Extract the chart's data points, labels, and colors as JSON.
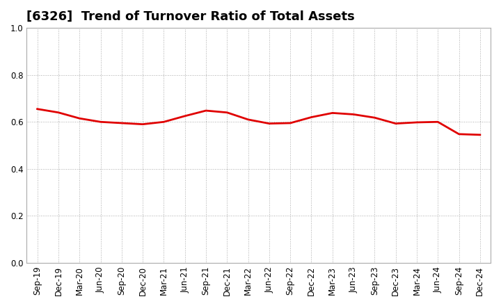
{
  "title": "[6326]  Trend of Turnover Ratio of Total Assets",
  "labels": [
    "Sep-19",
    "Dec-19",
    "Mar-20",
    "Jun-20",
    "Sep-20",
    "Dec-20",
    "Mar-21",
    "Jun-21",
    "Sep-21",
    "Dec-21",
    "Mar-22",
    "Jun-22",
    "Sep-22",
    "Dec-22",
    "Mar-23",
    "Jun-23",
    "Sep-23",
    "Dec-23",
    "Mar-24",
    "Jun-24",
    "Sep-24",
    "Dec-24"
  ],
  "values": [
    0.655,
    0.64,
    0.615,
    0.6,
    0.595,
    0.59,
    0.6,
    0.625,
    0.648,
    0.64,
    0.61,
    0.593,
    0.595,
    0.62,
    0.638,
    0.632,
    0.618,
    0.593,
    0.598,
    0.6,
    0.548,
    0.545
  ],
  "line_color": "#e00000",
  "line_width": 2.0,
  "ylim": [
    0.0,
    1.0
  ],
  "yticks": [
    0.0,
    0.2,
    0.4,
    0.6,
    0.8,
    1.0
  ],
  "bg_color": "#ffffff",
  "grid_color": "#aaaaaa",
  "title_fontsize": 13,
  "tick_fontsize": 8.5
}
